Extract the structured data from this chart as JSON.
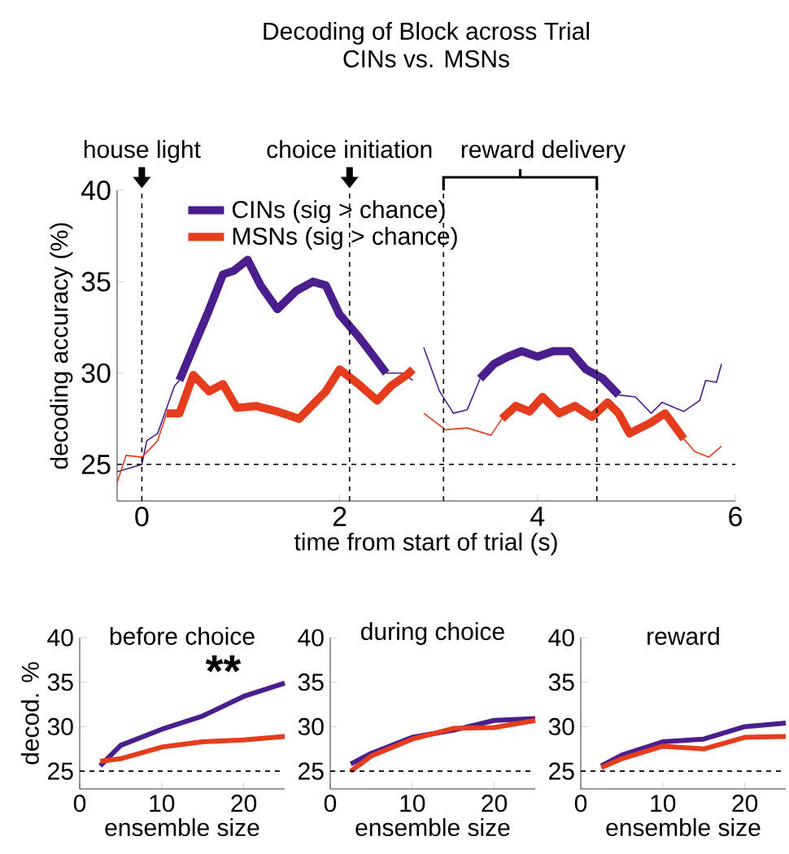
{
  "chart_data": [
    {
      "type": "line",
      "title": "Decoding of Block across Trial",
      "subtitle": "CINs vs. MSNs",
      "xlabel": "time from start of trial (s)",
      "ylabel": "decoding accuracy (%)",
      "xlim": [
        -0.25,
        6
      ],
      "ylim": [
        23,
        40
      ],
      "xticks": [
        0,
        2,
        4,
        6
      ],
      "yticks": [
        25,
        30,
        35,
        40
      ],
      "legend": "top left",
      "series": [
        {
          "color": "#4a1e8c",
          "x": [
            -0.25,
            0,
            0.05,
            0.16,
            0.33,
            0.38,
            1.4,
            2.47,
            2.63,
            2.74,
            2.8,
            2.85,
            3.01,
            3.15,
            3.29,
            3.42,
            4.1,
            4.82,
            4.99,
            5.15,
            5.26,
            5.48,
            5.64,
            5.7,
            5.81,
            5.86
          ],
          "values": [
            24.6,
            25.0,
            26.3,
            26.7,
            29.3,
            29.6,
            null,
            30.0,
            30.0,
            29.6,
            null,
            31.4,
            29.0,
            27.8,
            28.0,
            29.7,
            null,
            28.8,
            28.7,
            27.8,
            28.4,
            27.9,
            28.5,
            29.6,
            29.5,
            30.5
          ]
        },
        {
          "color": "#e63c1e",
          "x": [
            -0.25,
            -0.16,
            0,
            0.16,
            0.25,
            1.5,
            2.85,
            3.07,
            3.29,
            3.53,
            3.64,
            4.5,
            5.48,
            5.59,
            5.73,
            5.86
          ],
          "values": [
            24.0,
            25.5,
            25.4,
            26.3,
            27.8,
            null,
            27.8,
            26.9,
            27.0,
            26.6,
            27.5,
            null,
            26.4,
            25.7,
            25.4,
            26.0
          ]
        },
        {
          "name": "CINs (sig > chance)",
          "color": "#4a1e8c",
          "x": [
            0.38,
            0.55,
            0.66,
            0.82,
            0.93,
            1.07,
            1.2,
            1.37,
            1.56,
            1.73,
            1.86,
            2.0,
            2.19,
            2.36,
            2.47,
            2.9,
            3.42,
            3.56,
            3.7,
            3.84,
            4.0,
            4.16,
            4.33,
            4.49,
            4.66,
            4.82
          ],
          "values": [
            29.6,
            31.8,
            33.2,
            35.4,
            35.6,
            36.2,
            34.8,
            33.5,
            34.5,
            35.0,
            34.8,
            33.2,
            32.0,
            30.8,
            30.0,
            null,
            29.7,
            30.5,
            30.9,
            31.2,
            30.9,
            31.2,
            31.2,
            30.2,
            29.7,
            28.8
          ]
        },
        {
          "name": "MSNs (sig > chance)",
          "color": "#e63c1e",
          "x": [
            0.25,
            0.38,
            0.52,
            0.68,
            0.82,
            0.96,
            1.15,
            1.37,
            1.59,
            1.75,
            1.86,
            2.0,
            2.19,
            2.38,
            2.52,
            2.68,
            2.74,
            3.2,
            3.64,
            3.78,
            3.92,
            4.05,
            4.22,
            4.38,
            4.55,
            4.71,
            4.82,
            4.93,
            5.15,
            5.29,
            5.48
          ],
          "values": [
            27.8,
            27.8,
            29.9,
            29.0,
            29.4,
            28.1,
            28.2,
            27.9,
            27.5,
            28.4,
            29.0,
            30.2,
            29.4,
            28.5,
            29.3,
            29.9,
            30.2,
            null,
            27.5,
            28.2,
            27.9,
            28.7,
            27.8,
            28.2,
            27.6,
            28.4,
            27.8,
            26.7,
            27.3,
            27.8,
            26.4
          ]
        }
      ],
      "ref_lines": [
        {
          "axis": "y",
          "value": 25,
          "line_style": "dashed"
        },
        {
          "axis": "x",
          "value": 0,
          "label": "house light",
          "line_style": "dashed"
        },
        {
          "axis": "x",
          "value": 2.1,
          "label": "choice initiation",
          "line_style": "dashed"
        },
        {
          "axis": "x",
          "value": 3.05,
          "line_style": "dashed"
        },
        {
          "axis": "x",
          "value": 4.6,
          "line_style": "dashed"
        }
      ],
      "annotations": [
        "reward delivery"
      ]
    },
    {
      "type": "line",
      "title": "before choice",
      "xlabel": "ensemble size",
      "ylabel": "decod. %",
      "xlim": [
        0,
        25
      ],
      "ylim": [
        23,
        40
      ],
      "xticks": [
        0,
        10,
        20
      ],
      "yticks": [
        25,
        30,
        35,
        40
      ],
      "x": [
        2.5,
        5,
        10,
        15,
        20,
        25
      ],
      "series": [
        {
          "color": "#4a1e8c",
          "values": [
            25.6,
            27.9,
            29.7,
            31.2,
            33.4,
            34.9
          ]
        },
        {
          "color": "#e63c1e",
          "values": [
            26.1,
            26.4,
            27.7,
            28.3,
            28.5,
            28.9
          ]
        }
      ],
      "ref_lines": [
        {
          "axis": "y",
          "value": 25,
          "line_style": "dashed"
        }
      ],
      "annotations": [
        "**"
      ]
    },
    {
      "type": "line",
      "title": "during choice",
      "xlabel": "ensemble size",
      "xlim": [
        0,
        25
      ],
      "ylim": [
        23,
        40
      ],
      "xticks": [
        0,
        10,
        20
      ],
      "yticks": [
        25,
        30,
        35,
        40
      ],
      "x": [
        2.5,
        5,
        10,
        15,
        20,
        25
      ],
      "series": [
        {
          "color": "#4a1e8c",
          "values": [
            25.8,
            27.0,
            28.8,
            29.6,
            30.7,
            30.9
          ]
        },
        {
          "color": "#e63c1e",
          "values": [
            25.0,
            26.7,
            28.6,
            29.8,
            29.9,
            30.7
          ]
        }
      ],
      "ref_lines": [
        {
          "axis": "y",
          "value": 25,
          "line_style": "dashed"
        }
      ]
    },
    {
      "type": "line",
      "title": "reward",
      "xlabel": "ensemble size",
      "xlim": [
        0,
        25
      ],
      "ylim": [
        23,
        40
      ],
      "xticks": [
        0,
        10,
        20
      ],
      "yticks": [
        25,
        30,
        35,
        40
      ],
      "x": [
        2.5,
        5,
        10,
        15,
        20,
        25
      ],
      "series": [
        {
          "color": "#4a1e8c",
          "values": [
            25.6,
            26.8,
            28.3,
            28.6,
            30.0,
            30.4
          ]
        },
        {
          "color": "#e63c1e",
          "values": [
            25.4,
            26.4,
            27.8,
            27.5,
            28.8,
            28.9
          ]
        }
      ],
      "ref_lines": [
        {
          "axis": "y",
          "value": 25,
          "line_style": "dashed"
        }
      ]
    }
  ]
}
